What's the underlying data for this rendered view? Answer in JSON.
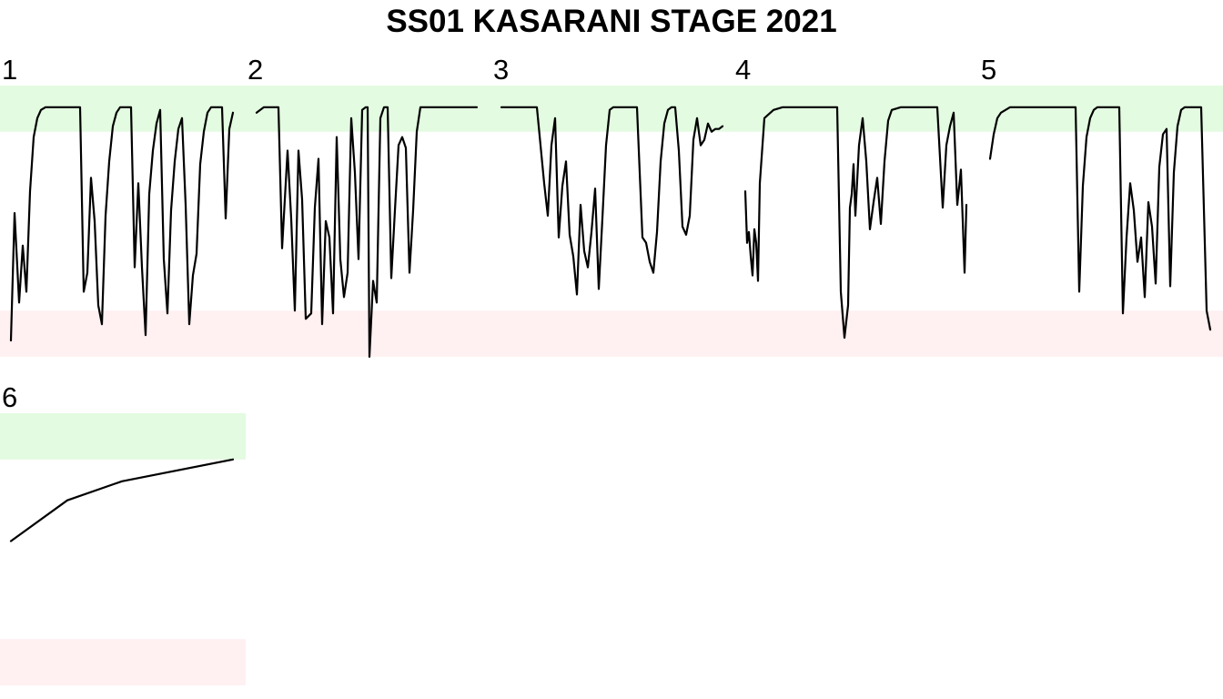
{
  "title": "SS01 KASARANI STAGE 2021",
  "colors": {
    "upper_band": "#e3fbe0",
    "lower_band": "#fff0f2",
    "line": "#000000"
  },
  "chart_data": {
    "type": "line",
    "title": "SS01 KASARANI STAGE 2021",
    "xlabel": "",
    "ylabel": "",
    "grid": false,
    "legend": "none",
    "ylim": [
      0,
      1
    ],
    "bands": [
      {
        "from": 0.83,
        "to": 1.0,
        "color": "upper_band"
      },
      {
        "from": 0.0,
        "to": 0.17,
        "color": "lower_band"
      }
    ],
    "panels": [
      {
        "label": "1",
        "xlim": [
          0,
          270
        ],
        "x": [
          12,
          16,
          21,
          25,
          29,
          33,
          37,
          41,
          45,
          50,
          60,
          70,
          80,
          88,
          92,
          96,
          100,
          104,
          108,
          112,
          116,
          120,
          124,
          128,
          132,
          136,
          140,
          144,
          148,
          152,
          156,
          160,
          164,
          168,
          172,
          176,
          180,
          184,
          188,
          192,
          196,
          200,
          204,
          208,
          212,
          216,
          220,
          224,
          228,
          232,
          236,
          240,
          244,
          248,
          252,
          256
        ],
        "y": [
          0.06,
          0.53,
          0.2,
          0.41,
          0.24,
          0.61,
          0.81,
          0.88,
          0.91,
          0.92,
          0.92,
          0.92,
          0.92,
          0.92,
          0.24,
          0.31,
          0.66,
          0.5,
          0.19,
          0.12,
          0.52,
          0.72,
          0.85,
          0.9,
          0.92,
          0.92,
          0.92,
          0.92,
          0.33,
          0.64,
          0.33,
          0.08,
          0.6,
          0.76,
          0.86,
          0.91,
          0.36,
          0.16,
          0.54,
          0.72,
          0.84,
          0.88,
          0.56,
          0.12,
          0.3,
          0.38,
          0.71,
          0.83,
          0.9,
          0.92,
          0.92,
          0.92,
          0.92,
          0.51,
          0.84,
          0.9
        ]
      },
      {
        "label": "2",
        "xlim": [
          270,
          540
        ],
        "x": [
          282,
          290,
          300,
          306,
          310,
          316,
          320,
          324,
          328,
          332,
          336,
          342,
          346,
          350,
          354,
          358,
          362,
          366,
          370,
          374,
          378,
          382,
          386,
          390,
          394,
          398,
          402,
          404,
          406,
          410,
          414,
          418,
          422,
          426,
          430,
          434,
          438,
          442,
          446,
          450,
          454,
          458,
          462,
          470,
          480,
          500,
          524
        ],
        "y": [
          0.9,
          0.92,
          0.92,
          0.92,
          0.4,
          0.76,
          0.51,
          0.17,
          0.76,
          0.58,
          0.14,
          0.16,
          0.55,
          0.73,
          0.12,
          0.5,
          0.44,
          0.16,
          0.81,
          0.36,
          0.22,
          0.31,
          0.88,
          0.68,
          0.36,
          0.91,
          0.92,
          0.92,
          0.0,
          0.28,
          0.2,
          0.88,
          0.92,
          0.92,
          0.29,
          0.54,
          0.78,
          0.81,
          0.77,
          0.31,
          0.54,
          0.83,
          0.92,
          0.92,
          0.92,
          0.92,
          0.92
        ]
      },
      {
        "label": "3",
        "xlim": [
          540,
          806
        ],
        "x": [
          551,
          560,
          570,
          580,
          590,
          598,
          602,
          606,
          610,
          614,
          618,
          622,
          626,
          630,
          634,
          638,
          642,
          646,
          650,
          654,
          658,
          662,
          666,
          670,
          674,
          678,
          682,
          690,
          700,
          706,
          710,
          714,
          718,
          722,
          726,
          730,
          734,
          738,
          742,
          746,
          750,
          754,
          758,
          762,
          766,
          770,
          774,
          778,
          782,
          786,
          790,
          794
        ],
        "y": [
          0.92,
          0.92,
          0.92,
          0.92,
          0.92,
          0.64,
          0.52,
          0.78,
          0.88,
          0.44,
          0.63,
          0.72,
          0.45,
          0.37,
          0.23,
          0.56,
          0.39,
          0.33,
          0.46,
          0.62,
          0.25,
          0.51,
          0.78,
          0.91,
          0.92,
          0.92,
          0.92,
          0.92,
          0.92,
          0.44,
          0.42,
          0.35,
          0.31,
          0.46,
          0.72,
          0.86,
          0.91,
          0.92,
          0.92,
          0.76,
          0.48,
          0.45,
          0.52,
          0.8,
          0.88,
          0.78,
          0.8,
          0.86,
          0.83,
          0.84,
          0.84,
          0.85
        ]
      },
      {
        "label": "4",
        "xlim": [
          806,
          1076
        ],
        "x": [
          819,
          821,
          823,
          825,
          827,
          829,
          831,
          833,
          835,
          840,
          850,
          860,
          870,
          880,
          890,
          900,
          910,
          920,
          924,
          928,
          932,
          934,
          936,
          938,
          940,
          944,
          948,
          952,
          956,
          960,
          964,
          968,
          972,
          976,
          980,
          990,
          1000,
          1010,
          1020,
          1030,
          1036,
          1040,
          1044,
          1048,
          1052,
          1056,
          1060,
          1062
        ],
        "y": [
          0.61,
          0.42,
          0.46,
          0.37,
          0.3,
          0.47,
          0.42,
          0.28,
          0.64,
          0.88,
          0.91,
          0.92,
          0.92,
          0.92,
          0.92,
          0.92,
          0.92,
          0.92,
          0.24,
          0.07,
          0.19,
          0.55,
          0.6,
          0.71,
          0.52,
          0.78,
          0.88,
          0.72,
          0.47,
          0.57,
          0.66,
          0.49,
          0.72,
          0.87,
          0.91,
          0.92,
          0.92,
          0.92,
          0.92,
          0.92,
          0.55,
          0.78,
          0.85,
          0.9,
          0.56,
          0.69,
          0.31,
          0.56
        ]
      },
      {
        "label": "5",
        "xlim": [
          1076,
          1344
        ],
        "x": [
          1088,
          1092,
          1096,
          1100,
          1110,
          1120,
          1140,
          1160,
          1182,
          1186,
          1190,
          1194,
          1198,
          1202,
          1206,
          1210,
          1220,
          1230,
          1234,
          1238,
          1242,
          1246,
          1250,
          1254,
          1258,
          1262,
          1266,
          1270,
          1274,
          1278,
          1282,
          1286,
          1290,
          1294,
          1298,
          1302,
          1310,
          1320,
          1326,
          1330
        ],
        "y": [
          0.73,
          0.82,
          0.88,
          0.9,
          0.92,
          0.92,
          0.92,
          0.92,
          0.92,
          0.24,
          0.63,
          0.81,
          0.88,
          0.91,
          0.92,
          0.92,
          0.92,
          0.92,
          0.16,
          0.44,
          0.64,
          0.54,
          0.35,
          0.44,
          0.22,
          0.57,
          0.48,
          0.27,
          0.7,
          0.82,
          0.84,
          0.26,
          0.68,
          0.85,
          0.91,
          0.92,
          0.92,
          0.92,
          0.17,
          0.1
        ]
      },
      {
        "label": "6",
        "xlim": [
          0,
          270
        ],
        "x": [
          12,
          74,
          134,
          256
        ],
        "y": [
          0.53,
          0.68,
          0.75,
          0.83
        ]
      }
    ]
  }
}
